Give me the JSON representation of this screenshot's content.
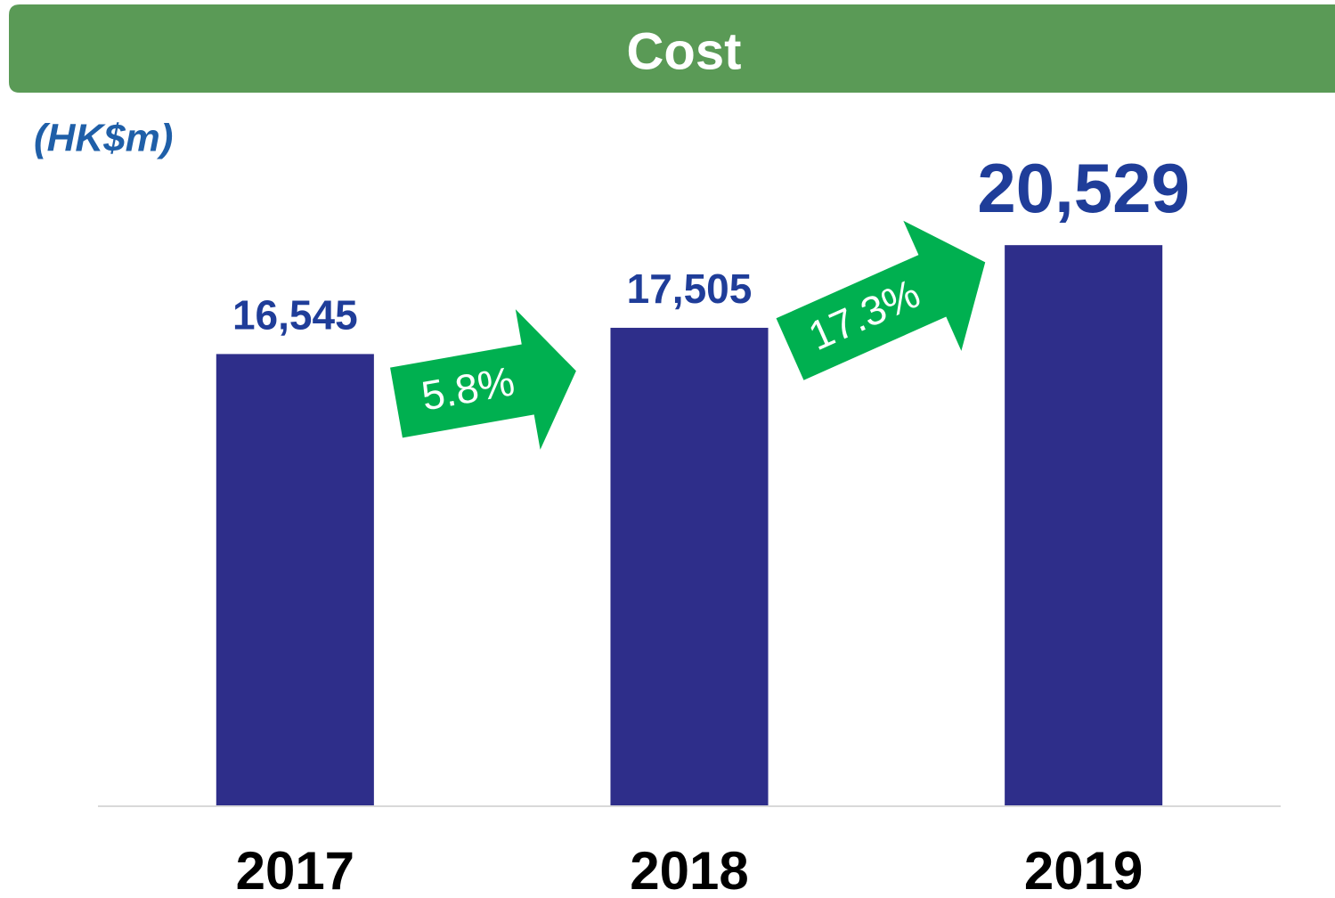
{
  "chart_data": {
    "type": "bar",
    "title": "Cost",
    "unit_label": "(HK$m)",
    "categories": [
      "2017",
      "2018",
      "2019"
    ],
    "values": [
      16545,
      17505,
      20529
    ],
    "value_labels": [
      "16,545",
      "17,505",
      "20,529"
    ],
    "color": "#2e2e8a",
    "ylim": [
      0,
      25000
    ],
    "annotations": [
      "5.8%",
      "17.3%"
    ]
  }
}
